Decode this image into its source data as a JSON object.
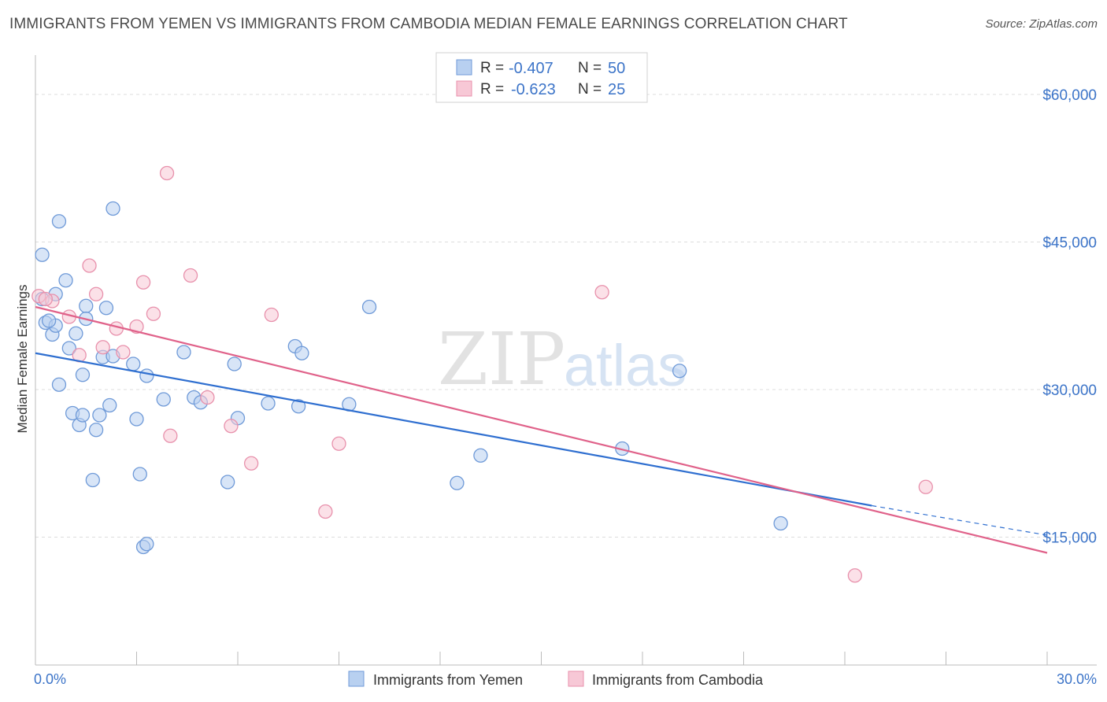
{
  "header": {
    "title": "IMMIGRANTS FROM YEMEN VS IMMIGRANTS FROM CAMBODIA MEDIAN FEMALE EARNINGS CORRELATION CHART",
    "source": "Source: ZipAtlas.com"
  },
  "watermark": {
    "zip": "ZIP",
    "atlas": "atlas"
  },
  "colors": {
    "blue_fill": "#b8d0f0",
    "blue_stroke": "#6f9ad8",
    "blue_line": "#2f6fd0",
    "pink_fill": "#f7c8d6",
    "pink_stroke": "#e891ac",
    "pink_line": "#e0628a",
    "axis_text": "#3c74c8",
    "grid": "#dddddd"
  },
  "legend": {
    "rows": [
      {
        "r_label": "R =",
        "r_value": "-0.407",
        "n_label": "N =",
        "n_value": "50"
      },
      {
        "r_label": "R =",
        "r_value": "-0.623",
        "n_label": "N =",
        "n_value": "25"
      }
    ]
  },
  "chart_data": {
    "type": "scatter",
    "title": "IMMIGRANTS FROM YEMEN VS IMMIGRANTS FROM CAMBODIA MEDIAN FEMALE EARNINGS CORRELATION CHART",
    "xlabel": "",
    "ylabel": "Median Female Earnings",
    "xlim": [
      0,
      30
    ],
    "ylim": [
      2000,
      64000
    ],
    "x_tick_labels": [
      "0.0%",
      "30.0%"
    ],
    "y_ticks": [
      15000,
      30000,
      45000,
      60000
    ],
    "y_tick_labels": [
      "$15,000",
      "$30,000",
      "$45,000",
      "$60,000"
    ],
    "grid": true,
    "series": [
      {
        "name": "Immigrants from Yemen",
        "color": "blue",
        "trend": {
          "x": [
            0.0,
            24.8
          ],
          "y": [
            33700,
            18200
          ],
          "dashed_to": [
            30.0,
            15200
          ]
        },
        "points": [
          [
            0.2,
            39200
          ],
          [
            0.2,
            43700
          ],
          [
            0.3,
            36800
          ],
          [
            0.5,
            35600
          ],
          [
            0.6,
            39700
          ],
          [
            0.6,
            36500
          ],
          [
            0.7,
            47100
          ],
          [
            0.7,
            30500
          ],
          [
            0.9,
            41100
          ],
          [
            1.0,
            34200
          ],
          [
            1.1,
            27600
          ],
          [
            1.2,
            35700
          ],
          [
            1.3,
            26400
          ],
          [
            1.4,
            27400
          ],
          [
            1.4,
            31500
          ],
          [
            1.5,
            38500
          ],
          [
            1.7,
            20800
          ],
          [
            1.8,
            25900
          ],
          [
            1.9,
            27400
          ],
          [
            2.0,
            33300
          ],
          [
            2.1,
            38300
          ],
          [
            2.2,
            28400
          ],
          [
            2.3,
            33400
          ],
          [
            2.3,
            48400
          ],
          [
            2.9,
            32600
          ],
          [
            3.0,
            27000
          ],
          [
            3.1,
            21400
          ],
          [
            3.2,
            14000
          ],
          [
            3.3,
            14300
          ],
          [
            3.3,
            31400
          ],
          [
            3.8,
            29000
          ],
          [
            4.4,
            33800
          ],
          [
            4.7,
            29200
          ],
          [
            4.9,
            28700
          ],
          [
            5.7,
            20600
          ],
          [
            5.9,
            32600
          ],
          [
            6.0,
            27100
          ],
          [
            6.9,
            28600
          ],
          [
            7.7,
            34400
          ],
          [
            7.8,
            28300
          ],
          [
            7.9,
            33700
          ],
          [
            9.3,
            28500
          ],
          [
            9.9,
            38400
          ],
          [
            12.5,
            20500
          ],
          [
            13.2,
            23300
          ],
          [
            17.4,
            24000
          ],
          [
            19.1,
            31900
          ],
          [
            22.1,
            16400
          ],
          [
            0.4,
            37000
          ],
          [
            1.5,
            37200
          ]
        ]
      },
      {
        "name": "Immigrants from Cambodia",
        "color": "pink",
        "trend": {
          "x": [
            0.0,
            30.0
          ],
          "y": [
            38400,
            13400
          ]
        },
        "points": [
          [
            0.1,
            39500
          ],
          [
            0.5,
            39000
          ],
          [
            1.0,
            37400
          ],
          [
            1.3,
            33500
          ],
          [
            1.6,
            42600
          ],
          [
            1.8,
            39700
          ],
          [
            2.0,
            34300
          ],
          [
            2.4,
            36200
          ],
          [
            2.6,
            33800
          ],
          [
            3.0,
            36400
          ],
          [
            3.2,
            40900
          ],
          [
            3.5,
            37700
          ],
          [
            3.9,
            52000
          ],
          [
            4.0,
            25300
          ],
          [
            4.6,
            41600
          ],
          [
            5.1,
            29200
          ],
          [
            5.8,
            26300
          ],
          [
            6.4,
            22500
          ],
          [
            7.0,
            37600
          ],
          [
            8.6,
            17600
          ],
          [
            9.0,
            24500
          ],
          [
            16.8,
            39900
          ],
          [
            24.3,
            11100
          ],
          [
            26.4,
            20100
          ],
          [
            0.3,
            39200
          ]
        ]
      }
    ]
  },
  "bottom_legend": {
    "items": [
      {
        "label": "Immigrants from Yemen"
      },
      {
        "label": "Immigrants from Cambodia"
      }
    ]
  }
}
